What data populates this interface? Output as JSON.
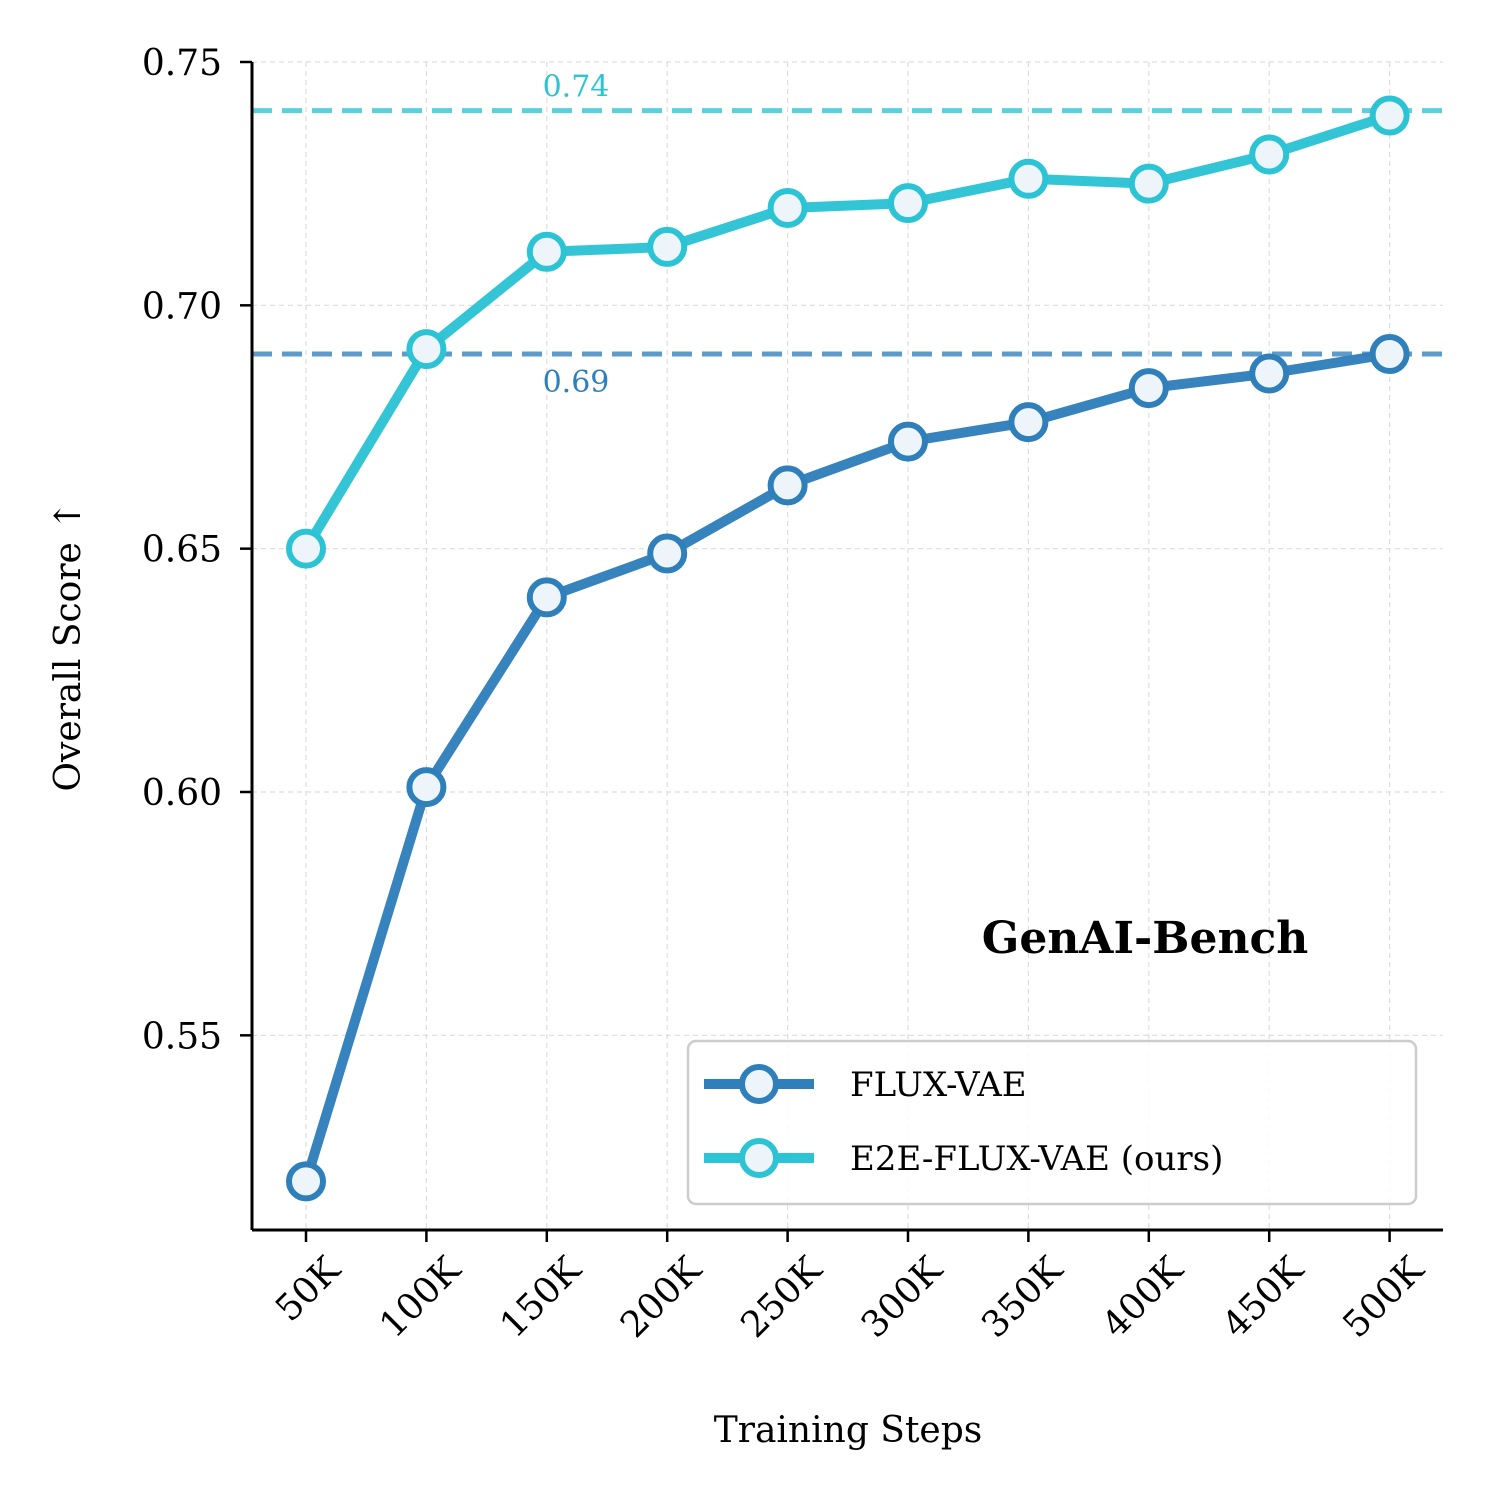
{
  "chart_data": {
    "type": "line",
    "xlabel": "Training Steps",
    "ylabel": "Overall Score ↑",
    "annotation": "GenAI-Bench",
    "categories": [
      "50K",
      "100K",
      "150K",
      "200K",
      "250K",
      "300K",
      "350K",
      "400K",
      "450K",
      "500K"
    ],
    "ylim": [
      0.51,
      0.75
    ],
    "yticks": [
      "0.55",
      "0.60",
      "0.65",
      "0.70",
      "0.75"
    ],
    "yticks_values": [
      0.55,
      0.6,
      0.65,
      0.7,
      0.75
    ],
    "grid": true,
    "legend_position": "bottom-right",
    "series": [
      {
        "name": "FLUX-VAE",
        "color": "#2f7fbb",
        "values": [
          0.52,
          0.601,
          0.64,
          0.649,
          0.663,
          0.672,
          0.676,
          0.683,
          0.686,
          0.69
        ]
      },
      {
        "name": "E2E-FLUX-VAE (ours)",
        "color": "#2cc3d4",
        "values": [
          0.65,
          0.691,
          0.711,
          0.712,
          0.72,
          0.721,
          0.726,
          0.725,
          0.731,
          0.739
        ]
      }
    ],
    "reference_lines": [
      {
        "value": 0.74,
        "label": "0.74",
        "color": "#2cc3d4"
      },
      {
        "value": 0.69,
        "label": "0.69",
        "color": "#2f7fbb"
      }
    ]
  }
}
